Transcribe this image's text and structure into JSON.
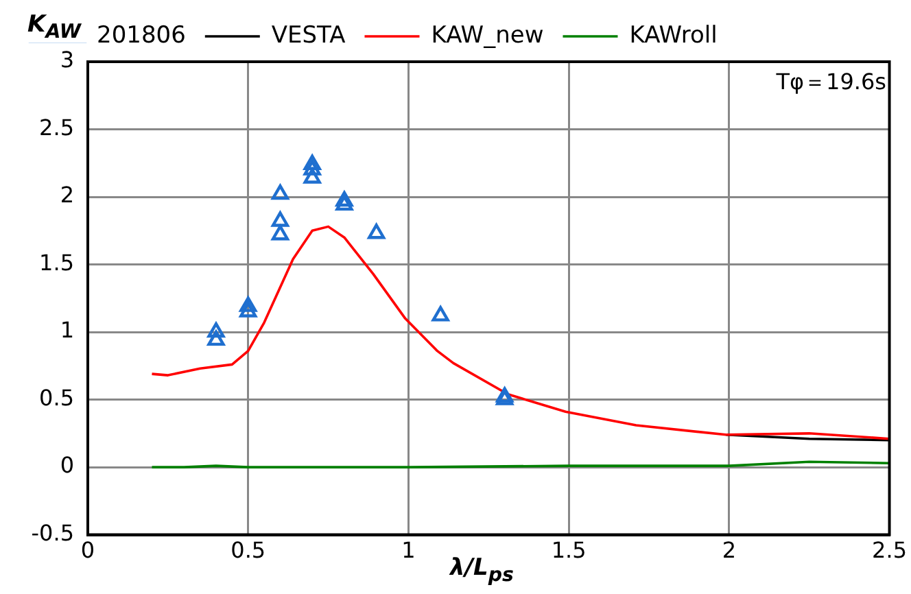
{
  "chart_data": {
    "type": "line",
    "xlabel": "λ/L$_{ps}$",
    "ylabel": "K$_{AW}$",
    "annotations": [
      "Tφ＝19.6s"
    ],
    "xlim": [
      0,
      2.5
    ],
    "xticks": [
      0,
      0.5,
      1,
      1.5,
      2,
      2.5
    ],
    "ylim": [
      -0.5,
      3
    ],
    "yticks": [
      -0.5,
      0,
      0.5,
      1,
      1.5,
      2,
      2.5,
      3
    ],
    "grid": true,
    "legend": "top",
    "line_style": "solid",
    "series": [
      {
        "name": "201806",
        "type": "scatter",
        "marker": "triangle",
        "color": "#1f6fcf",
        "x": [
          0.4,
          0.4,
          0.5,
          0.5,
          0.6,
          0.6,
          0.6,
          0.7,
          0.7,
          0.7,
          0.8,
          0.8,
          0.9,
          1.1,
          1.3,
          1.3
        ],
        "values": [
          1.0,
          0.94,
          1.19,
          1.15,
          2.02,
          1.82,
          1.72,
          2.24,
          2.2,
          2.14,
          1.97,
          1.94,
          1.73,
          1.12,
          0.52,
          0.5
        ]
      },
      {
        "name": "VESTA",
        "type": "line",
        "color": "#000000",
        "x": [
          1.99,
          2.25,
          2.5
        ],
        "values": [
          0.24,
          0.21,
          0.2
        ]
      },
      {
        "name": "KAW_new",
        "type": "line",
        "color": "#ff0000",
        "x": [
          0.2,
          0.25,
          0.35,
          0.45,
          0.5,
          0.55,
          0.64,
          0.7,
          0.75,
          0.8,
          0.89,
          0.99,
          1.09,
          1.14,
          1.31,
          1.49,
          1.71,
          1.99,
          2.25,
          2.5
        ],
        "values": [
          0.69,
          0.68,
          0.73,
          0.76,
          0.86,
          1.07,
          1.54,
          1.75,
          1.78,
          1.7,
          1.43,
          1.1,
          0.86,
          0.77,
          0.54,
          0.41,
          0.31,
          0.24,
          0.25,
          0.21
        ]
      },
      {
        "name": "KAWroll",
        "type": "line",
        "color": "#008000",
        "x": [
          0.2,
          0.3,
          0.4,
          0.5,
          1.0,
          1.5,
          2.0,
          2.25,
          2.5
        ],
        "values": [
          0.0,
          0.0,
          0.01,
          0.0,
          0.0,
          0.01,
          0.01,
          0.04,
          0.03
        ]
      }
    ]
  }
}
